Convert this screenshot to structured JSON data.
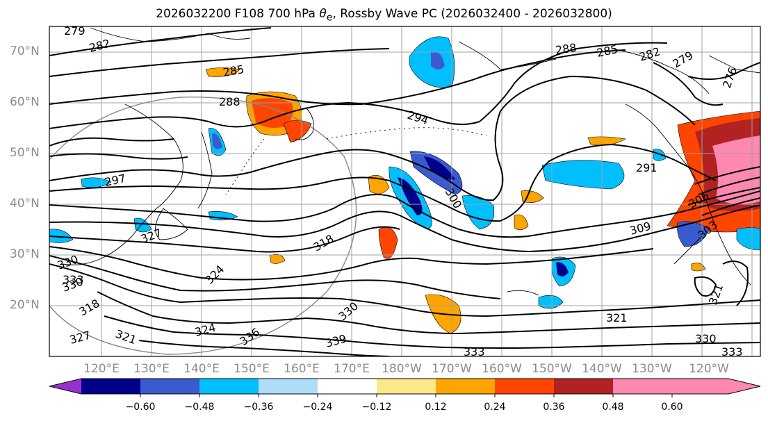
{
  "title": {
    "prefix": "2026032200 F108 700 hPa ",
    "symbol": "θ",
    "symbol_sub": "e",
    "suffix": ", Rossby Wave PC (2026032400 - 2026032800)"
  },
  "lat_labels": [
    "70°N",
    "60°N",
    "50°N",
    "40°N",
    "30°N",
    "20°N"
  ],
  "lon_labels": [
    "120°E",
    "130°E",
    "140°E",
    "150°E",
    "160°E",
    "170°E",
    "180°W",
    "170°W",
    "160°W",
    "150°W",
    "140°W",
    "130°W",
    "120°W"
  ],
  "colorbar": {
    "ticks": [
      "−0.60",
      "−0.48",
      "−0.36",
      "−0.24",
      "−0.12",
      "0.12",
      "0.24",
      "0.36",
      "0.48",
      "0.60"
    ],
    "colors": [
      "#9932cc",
      "#00008b",
      "#3a5bd0",
      "#00bfff",
      "#afdcf7",
      "#ffffff",
      "#ffe88a",
      "#ffa500",
      "#ff4500",
      "#b22222",
      "#ff88b0"
    ]
  },
  "contour_labels": [
    "279",
    "282",
    "285",
    "288",
    "288",
    "285",
    "282",
    "279",
    "276",
    "294",
    "297",
    "300",
    "291",
    "309",
    "306",
    "303",
    "318",
    "324",
    "324",
    "327",
    "330",
    "330",
    "333",
    "330",
    "336",
    "339",
    "333",
    "321",
    "321",
    "330",
    "333",
    "327",
    "321",
    "318"
  ]
}
